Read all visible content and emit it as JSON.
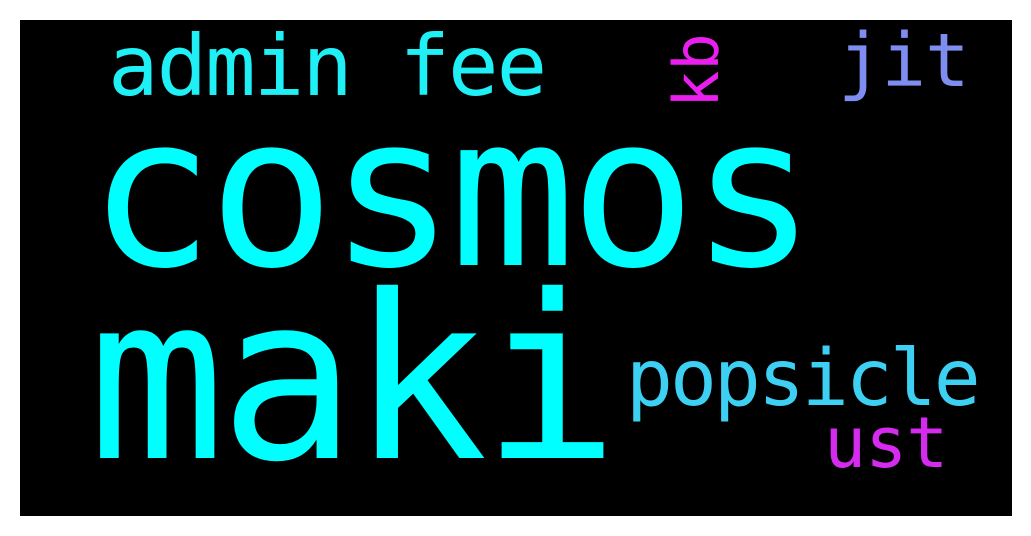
{
  "words": [
    {
      "text": "cosmos",
      "color": "#00ffff"
    },
    {
      "text": "maki",
      "color": "#00ffff"
    },
    {
      "text": "admin fee",
      "color": "#1ff0f5"
    },
    {
      "text": "popsicle",
      "color": "#3dd0f2"
    },
    {
      "text": "jit",
      "color": "#7f8cf0"
    },
    {
      "text": "ust",
      "color": "#d42bef"
    },
    {
      "text": "kb",
      "color": "#e91ff0"
    }
  ]
}
